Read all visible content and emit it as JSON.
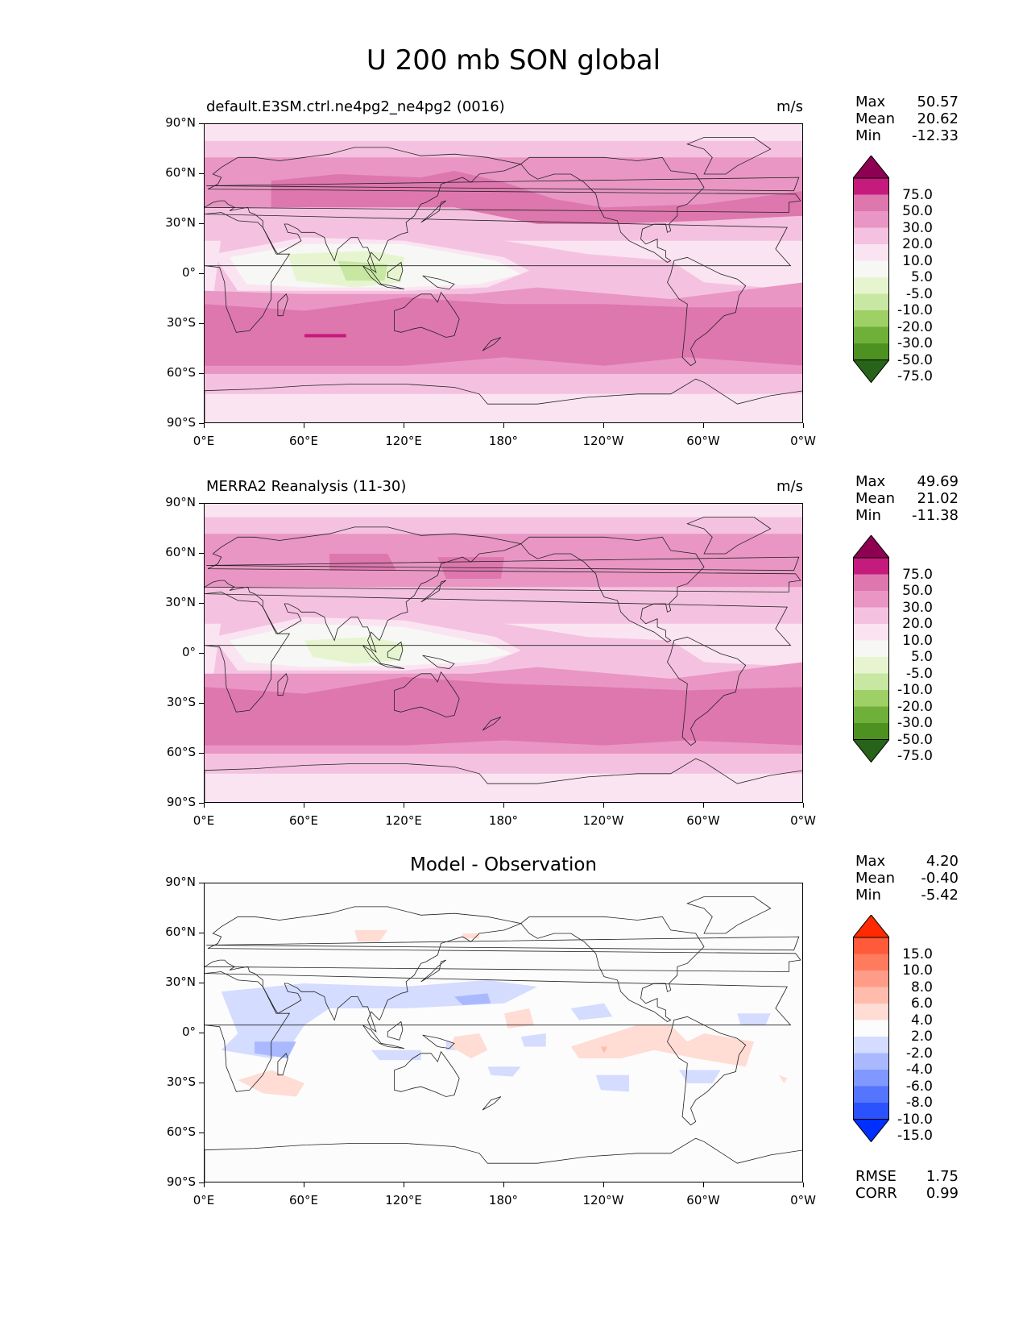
{
  "figure": {
    "title": "U 200 mb SON global"
  },
  "axes": {
    "y_ticks": [
      "90°N",
      "60°N",
      "30°N",
      "0°",
      "30°S",
      "60°S",
      "90°S"
    ],
    "x_ticks": [
      "0°E",
      "60°E",
      "120°E",
      "180°",
      "120°W",
      "60°W",
      "0°W"
    ]
  },
  "panels": [
    {
      "title": "default.E3SM.ctrl.ne4pg2_ne4pg2 (0016)",
      "units": "m/s",
      "stats": [
        {
          "label": "Max",
          "value": "50.57"
        },
        {
          "label": "Mean",
          "value": "20.62"
        },
        {
          "label": "Min",
          "value": "-12.33"
        }
      ],
      "colorbar": {
        "labels": [
          "75.0",
          "50.0",
          "30.0",
          "20.0",
          "10.0",
          "5.0",
          "-5.0",
          "-10.0",
          "-20.0",
          "-30.0",
          "-50.0",
          "-75.0"
        ],
        "colors": [
          "#8e0152",
          "#c51b7d",
          "#de77ae",
          "#e996c4",
          "#f4c2e0",
          "#fbe4f1",
          "#f7f7f5",
          "#e6f5d0",
          "#c7e7a2",
          "#9ed066",
          "#6fb03a",
          "#4d9221",
          "#276419"
        ]
      }
    },
    {
      "title": "MERRA2 Reanalysis (11-30)",
      "units": "m/s",
      "stats": [
        {
          "label": "Max",
          "value": "49.69"
        },
        {
          "label": "Mean",
          "value": "21.02"
        },
        {
          "label": "Min",
          "value": "-11.38"
        }
      ],
      "colorbar": {
        "labels": [
          "75.0",
          "50.0",
          "30.0",
          "20.0",
          "10.0",
          "5.0",
          "-5.0",
          "-10.0",
          "-20.0",
          "-30.0",
          "-50.0",
          "-75.0"
        ],
        "colors": [
          "#8e0152",
          "#c51b7d",
          "#de77ae",
          "#e996c4",
          "#f4c2e0",
          "#fbe4f1",
          "#f7f7f5",
          "#e6f5d0",
          "#c7e7a2",
          "#9ed066",
          "#6fb03a",
          "#4d9221",
          "#276419"
        ]
      }
    },
    {
      "title": "Model - Observation",
      "units": "",
      "stats": [
        {
          "label": "Max",
          "value": "4.20"
        },
        {
          "label": "Mean",
          "value": "-0.40"
        },
        {
          "label": "Min",
          "value": "-5.42"
        }
      ],
      "colorbar": {
        "labels": [
          "15.0",
          "10.0",
          "8.0",
          "6.0",
          "4.0",
          "2.0",
          "-2.0",
          "-4.0",
          "-6.0",
          "-8.0",
          "-10.0",
          "-15.0"
        ],
        "colors": [
          "#ff2a00",
          "#ff5a3a",
          "#ff7b5e",
          "#ff9c87",
          "#ffbcad",
          "#ffdcd4",
          "#fcfcfc",
          "#d4dcff",
          "#aab9ff",
          "#8098ff",
          "#5575ff",
          "#2a52ff",
          "#0030ff"
        ]
      },
      "rmse": [
        {
          "label": "RMSE",
          "value": "1.75"
        },
        {
          "label": "CORR",
          "value": "0.99"
        }
      ]
    }
  ]
}
